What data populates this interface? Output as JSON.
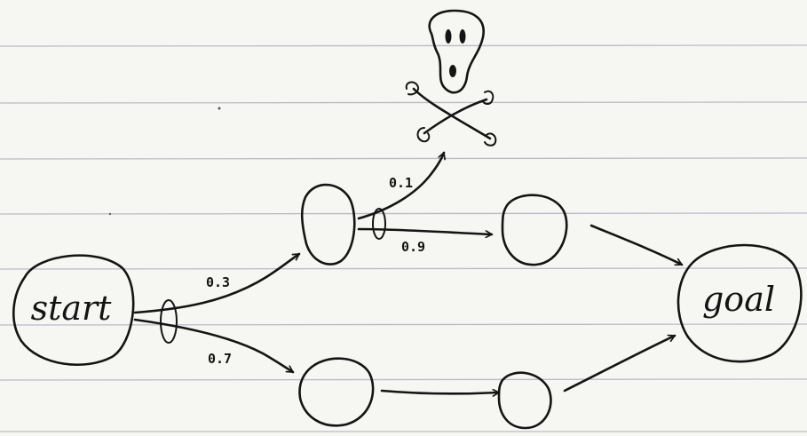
{
  "nodes": {
    "start": {
      "label": "start"
    },
    "goal": {
      "label": "goal"
    }
  },
  "edges": {
    "start_to_upper": {
      "probability": "0.3"
    },
    "start_to_lower": {
      "probability": "0.7"
    },
    "upper_to_death": {
      "probability": "0.1"
    },
    "upper_to_mid": {
      "probability": "0.9"
    }
  },
  "icons": {
    "death": "skull-and-crossbones-icon"
  },
  "colors": {
    "paper": "#f6f6f2",
    "ruled_lines": "#b9bcc4",
    "ink": "#141414"
  }
}
